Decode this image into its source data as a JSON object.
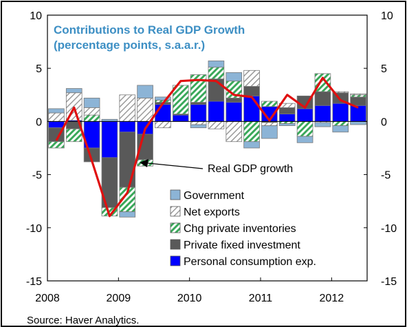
{
  "chart_data": {
    "type": "bar",
    "stacked": true,
    "title": "Contributions to Real GDP Growth",
    "subtitle": "(percentage points, s.a.a.r.)",
    "categories": [
      "2008Q1",
      "2008Q2",
      "2008Q3",
      "2008Q4",
      "2009Q1",
      "2009Q2",
      "2009Q3",
      "2009Q4",
      "2010Q1",
      "2010Q2",
      "2010Q3",
      "2010Q4",
      "2011Q1",
      "2011Q2",
      "2011Q3",
      "2011Q4",
      "2012Q1",
      "2012Q2"
    ],
    "x_tick_labels": [
      "2008",
      "2009",
      "2010",
      "2011",
      "2012"
    ],
    "ylim": [
      -15,
      10
    ],
    "y_ticks": [
      10,
      5,
      0,
      -5,
      -10,
      -15
    ],
    "y_ticks_right": [
      10,
      5,
      0,
      -5,
      -10,
      -15
    ],
    "grid": false,
    "legend_position": "bottom-right",
    "series": [
      {
        "name": "Personal consumption exp.",
        "color": "#0000ff",
        "pattern": "solid",
        "values": [
          -0.6,
          0.1,
          -2.5,
          -3.4,
          -1.0,
          -1.2,
          1.6,
          0.6,
          1.6,
          1.9,
          1.8,
          2.4,
          1.4,
          0.7,
          1.2,
          1.5,
          1.7,
          1.5
        ]
      },
      {
        "name": "Private fixed investment",
        "color": "#595959",
        "pattern": "solid",
        "values": [
          -1.3,
          -0.7,
          -1.3,
          -4.7,
          -5.2,
          -2.4,
          0.2,
          0.1,
          0.2,
          2.1,
          0.4,
          0.9,
          -0.1,
          0.6,
          1.2,
          1.3,
          1.0,
          0.8
        ]
      },
      {
        "name": "Chg private inventories",
        "color": "#3aa85a",
        "pattern": "hatch",
        "values": [
          -0.6,
          -1.2,
          0.6,
          -0.8,
          -2.3,
          -0.6,
          0.2,
          2.7,
          2.6,
          1.1,
          1.6,
          -1.9,
          0.5,
          -0.2,
          -1.4,
          1.7,
          -0.4,
          0.2
        ]
      },
      {
        "name": "Net exports",
        "color": "#ffffff",
        "pattern": "hatch-gray",
        "values": [
          0.8,
          2.6,
          0.7,
          0.0,
          2.5,
          2.2,
          -0.6,
          0.0,
          -0.3,
          -0.7,
          -1.9,
          1.5,
          -0.3,
          0.4,
          0.0,
          -0.1,
          0.1,
          0.1
        ]
      },
      {
        "name": "Government",
        "color": "#8cb4d6",
        "pattern": "solid",
        "values": [
          0.4,
          0.4,
          0.9,
          0.2,
          -0.5,
          1.2,
          0.3,
          0.0,
          -0.3,
          0.6,
          0.8,
          -0.6,
          -1.2,
          -0.2,
          -0.6,
          -0.4,
          -0.6,
          -0.3
        ]
      }
    ],
    "line": {
      "name": "Real GDP growth",
      "color": "#e01010",
      "values": [
        -1.8,
        1.3,
        -3.7,
        -8.9,
        -6.7,
        -0.7,
        1.7,
        3.8,
        3.9,
        3.8,
        2.5,
        2.3,
        0.1,
        2.5,
        1.3,
        4.1,
        2.0,
        1.3
      ]
    },
    "annotation": "Real GDP growth",
    "source": "Source:  Haver Analytics."
  }
}
